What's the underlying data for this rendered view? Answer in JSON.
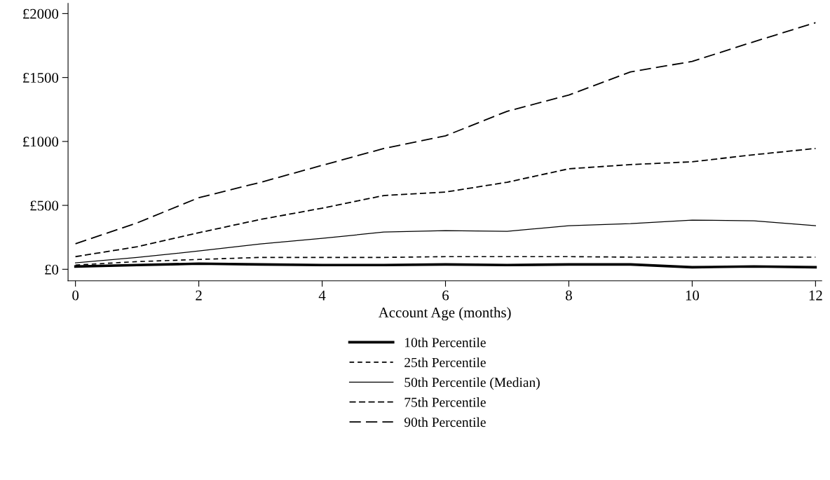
{
  "chart_data": {
    "type": "line",
    "xlabel": "Account Age (months)",
    "x": [
      0,
      1,
      2,
      3,
      4,
      5,
      6,
      7,
      8,
      9,
      10,
      11,
      12
    ],
    "xlim": [
      -0.12,
      12.1
    ],
    "xticks": [
      0,
      2,
      4,
      6,
      8,
      10,
      12
    ],
    "ylim": [
      -90,
      2080
    ],
    "yticks": [
      {
        "value": 0,
        "label": "£0"
      },
      {
        "value": 500,
        "label": "£500"
      },
      {
        "value": 1000,
        "label": "£1000"
      },
      {
        "value": 1500,
        "label": "£1500"
      },
      {
        "value": 2000,
        "label": "£2000"
      }
    ],
    "grid": false,
    "legend": "bottom",
    "marker": "none",
    "series": [
      {
        "name": "10th Percentile",
        "color": "#000000",
        "line_style": "solid",
        "values": [
          22,
          33,
          44,
          38,
          33,
          33,
          38,
          33,
          38,
          38,
          16,
          22,
          16
        ]
      },
      {
        "name": "25th Percentile",
        "color": "#000000",
        "line_style": "dashed",
        "values": [
          33,
          60,
          77,
          93,
          93,
          93,
          99,
          99,
          99,
          95,
          95,
          95,
          95
        ]
      },
      {
        "name": "50th Percentile (Median)",
        "color": "#000000",
        "line_style": "solid",
        "values": [
          50,
          93,
          143,
          198,
          242,
          291,
          302,
          297,
          341,
          357,
          385,
          379,
          341
        ]
      },
      {
        "name": "75th Percentile",
        "color": "#000000",
        "line_style": "dashed",
        "values": [
          99,
          176,
          286,
          390,
          478,
          577,
          604,
          681,
          786,
          819,
          841,
          896,
          945
        ]
      },
      {
        "name": "90th Percentile",
        "color": "#000000",
        "line_style": "dashed",
        "values": [
          200,
          363,
          560,
          680,
          813,
          945,
          1044,
          1236,
          1363,
          1544,
          1626,
          1780,
          1929
        ]
      }
    ]
  }
}
